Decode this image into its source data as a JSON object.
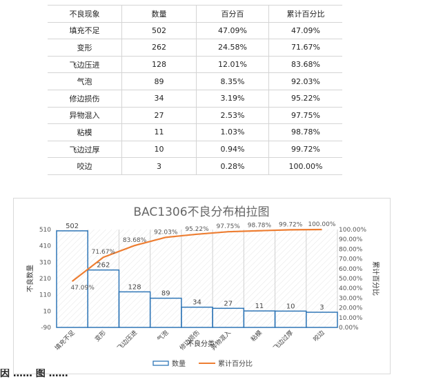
{
  "table": {
    "headers": [
      "不良现象",
      "数量",
      "百分百",
      "累计百分比"
    ],
    "rows": [
      [
        "填充不足",
        "502",
        "47.09%",
        "47.09%"
      ],
      [
        "变形",
        "262",
        "24.58%",
        "71.67%"
      ],
      [
        "飞边压进",
        "128",
        "12.01%",
        "83.68%"
      ],
      [
        "气泡",
        "89",
        "8.35%",
        "92.03%"
      ],
      [
        "修边损伤",
        "34",
        "3.19%",
        "95.22%"
      ],
      [
        "异物混入",
        "27",
        "2.53%",
        "97.75%"
      ],
      [
        "粘模",
        "11",
        "1.03%",
        "98.78%"
      ],
      [
        "飞边过厚",
        "10",
        "0.94%",
        "99.72%"
      ],
      [
        "咬边",
        "3",
        "0.28%",
        "100.00%"
      ]
    ]
  },
  "chart_data": {
    "type": "bar",
    "title": "BAC1306不良分布柏拉图",
    "xlabel": "不良分类",
    "ylabel": "不良数量",
    "y2label": "累计百分比",
    "categories": [
      "填充不足",
      "变形",
      "飞边压进",
      "气泡",
      "修边损伤",
      "异物混入",
      "粘模",
      "飞边过厚",
      "咬边"
    ],
    "ylim": [
      -90,
      510
    ],
    "yticks": [
      -90,
      10,
      110,
      210,
      310,
      410,
      510
    ],
    "y2lim": [
      0,
      100
    ],
    "y2ticks": [
      "0.00%",
      "10.00%",
      "20.00%",
      "30.00%",
      "40.00%",
      "50.00%",
      "60.00%",
      "70.00%",
      "80.00%",
      "90.00%",
      "100.00%"
    ],
    "series": [
      {
        "name": "数量",
        "type": "bar",
        "axis": "left",
        "color": "#2e75b6",
        "values": [
          502,
          262,
          128,
          89,
          34,
          27,
          11,
          10,
          3
        ],
        "labels": [
          "502",
          "262",
          "128",
          "89",
          "34",
          "27",
          "11",
          "10",
          "3"
        ]
      },
      {
        "name": "累计百分比",
        "type": "line",
        "axis": "right",
        "color": "#ed7d31",
        "values": [
          47.09,
          71.67,
          83.68,
          92.03,
          95.22,
          97.75,
          98.78,
          99.72,
          100.0
        ],
        "labels": [
          "47.09%",
          "71.67%",
          "83.68%",
          "92.03%",
          "95.22%",
          "97.75%",
          "98.78%",
          "99.72%",
          "100.00%"
        ]
      }
    ],
    "legend": "bottom"
  },
  "caption": {
    "text": "因 …… 图 ……"
  }
}
